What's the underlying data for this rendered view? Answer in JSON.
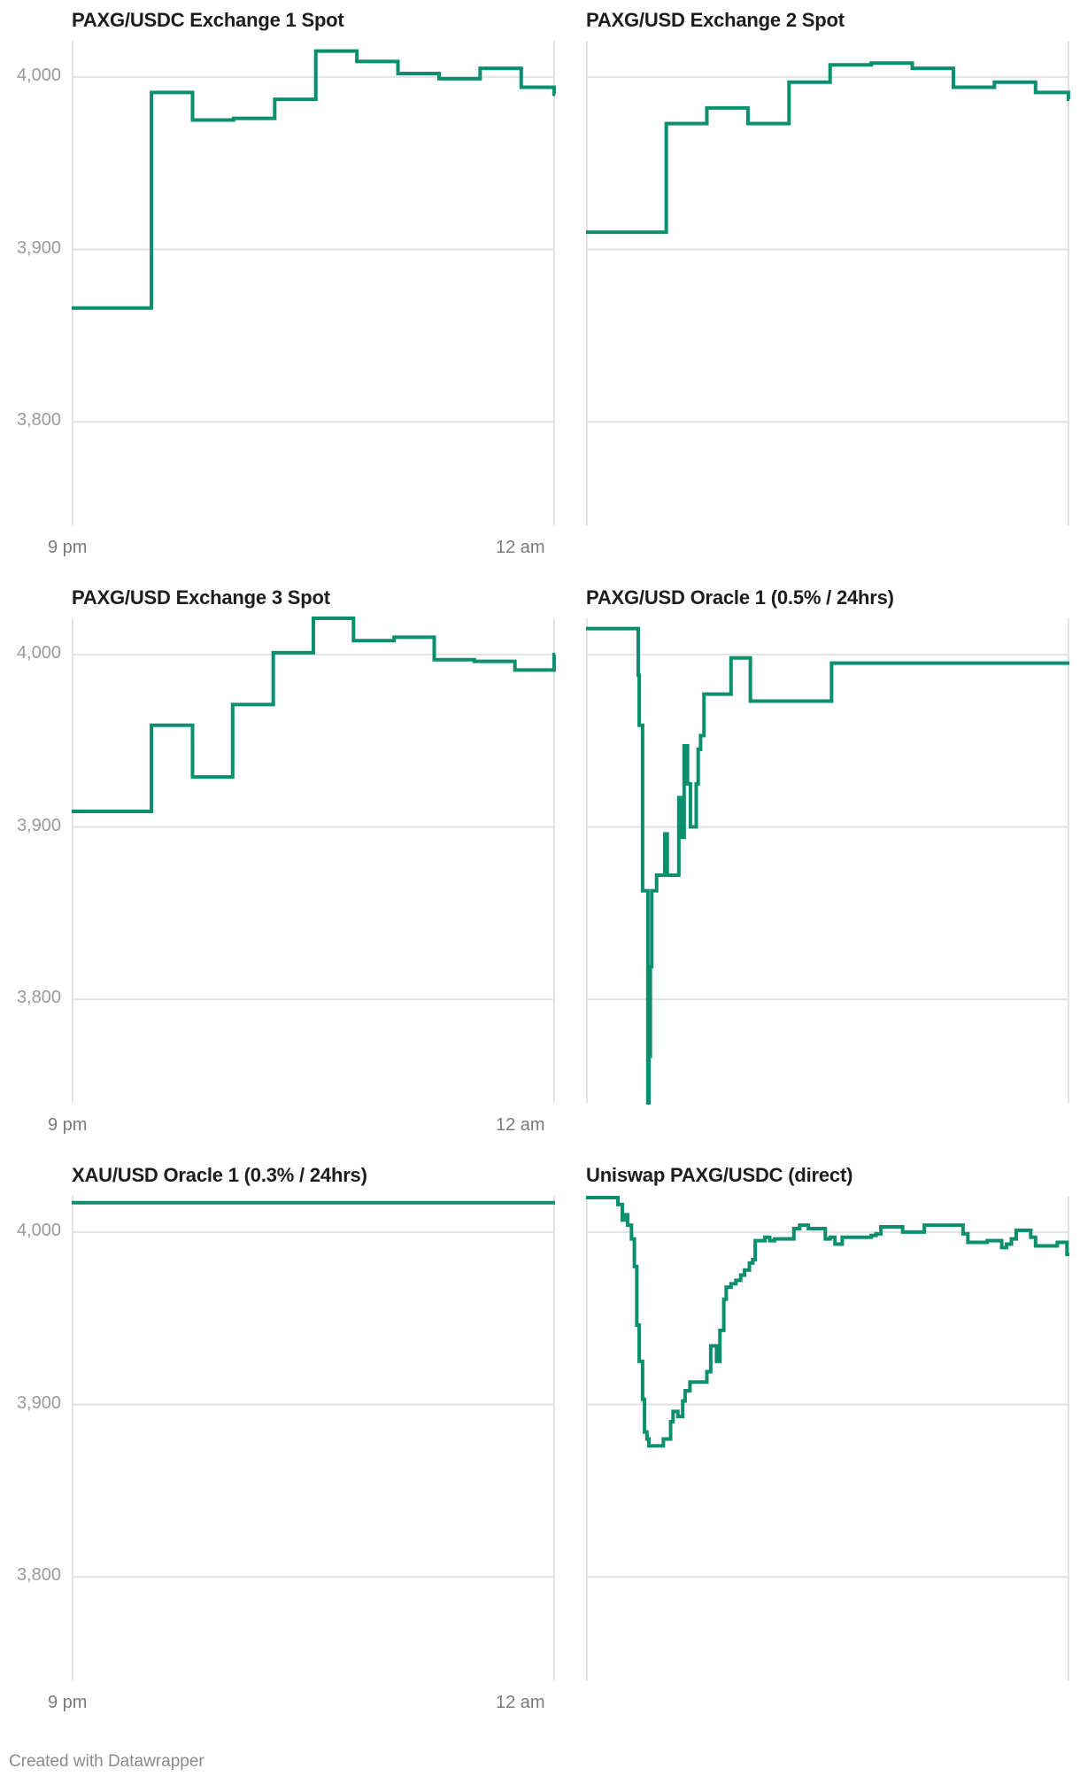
{
  "footer": "Created with Datawrapper",
  "style": {
    "line_color": "#0b8f6e",
    "grid_color": "#e2e2e2",
    "axis_color": "#e2e2e2"
  },
  "axis": {
    "y_ticks": [
      {
        "value": 4000,
        "label": "4,000"
      },
      {
        "value": 3900,
        "label": "3,900"
      },
      {
        "value": 3800,
        "label": "3,800"
      }
    ],
    "x_labels": {
      "start": "9 pm",
      "end": "12 am"
    }
  },
  "chart_data": [
    {
      "type": "line",
      "step": true,
      "title": "PAXG/USDC Exchange 1 Spot",
      "xlabel": "",
      "ylabel": "",
      "ylim": [
        3740,
        4021
      ],
      "x": [
        0,
        0.165,
        0.25,
        0.335,
        0.42,
        0.505,
        0.59,
        0.675,
        0.76,
        0.845,
        0.93,
        0.998,
        1.0
      ],
      "values": [
        3866,
        3991,
        3975,
        3976,
        3987,
        4015,
        4009,
        4002,
        3999,
        4005,
        3994,
        3990,
        3990
      ]
    },
    {
      "type": "line",
      "step": true,
      "title": "PAXG/USD Exchange 2 Spot",
      "xlabel": "",
      "ylabel": "",
      "ylim": [
        3740,
        4021
      ],
      "x": [
        0,
        0.166,
        0.25,
        0.335,
        0.42,
        0.505,
        0.59,
        0.675,
        0.76,
        0.845,
        0.93,
        0.998,
        1.0
      ],
      "values": [
        3910,
        3973,
        3982,
        3973,
        3997,
        4007,
        4008,
        4005,
        3994,
        3997,
        3991,
        3987,
        3987
      ]
    },
    {
      "type": "line",
      "step": true,
      "title": "PAXG/USD Exchange 3 Spot",
      "xlabel": "",
      "ylabel": "",
      "ylim": [
        3740,
        4021
      ],
      "x": [
        0,
        0.165,
        0.25,
        0.333,
        0.417,
        0.5,
        0.583,
        0.667,
        0.75,
        0.833,
        0.917,
        0.998,
        1.0
      ],
      "values": [
        3909,
        3959,
        3929,
        3971,
        4001,
        4021,
        4008,
        4010,
        3997,
        3996,
        3991,
        4000,
        4000
      ]
    },
    {
      "type": "line",
      "step": true,
      "title": "PAXG/USD Oracle 1 (0.5% / 24hrs)",
      "xlabel": "",
      "ylabel": "",
      "ylim": [
        3740,
        4021
      ],
      "x": [
        0,
        0.108,
        0.11,
        0.117,
        0.128,
        0.13,
        0.133,
        0.136,
        0.146,
        0.163,
        0.168,
        0.192,
        0.197,
        0.203,
        0.21,
        0.216,
        0.228,
        0.232,
        0.237,
        0.244,
        0.25,
        0.3,
        0.34,
        0.508,
        1.0
      ],
      "values": [
        4015,
        3988,
        3959,
        3863,
        3740,
        3767,
        3819,
        3863,
        3872,
        3896,
        3872,
        3917,
        3894,
        3947,
        3925,
        3900,
        3925,
        3945,
        3953,
        3977,
        3977,
        3998,
        3973,
        3995,
        3995
      ]
    },
    {
      "type": "line",
      "step": true,
      "title": "XAU/USD Oracle 1 (0.3% / 24hrs)",
      "xlabel": "",
      "ylabel": "",
      "ylim": [
        3740,
        4021
      ],
      "x": [
        0,
        1.0
      ],
      "values": [
        4017,
        4017
      ]
    },
    {
      "type": "line",
      "step": true,
      "title": "Uniswap PAXG/USDC (direct)",
      "xlabel": "",
      "ylabel": "",
      "ylim": [
        3740,
        4021
      ],
      "x": [
        0,
        0.066,
        0.075,
        0.08,
        0.086,
        0.094,
        0.1,
        0.105,
        0.11,
        0.117,
        0.121,
        0.126,
        0.13,
        0.16,
        0.175,
        0.18,
        0.19,
        0.2,
        0.205,
        0.215,
        0.25,
        0.258,
        0.27,
        0.277,
        0.285,
        0.29,
        0.3,
        0.31,
        0.32,
        0.328,
        0.338,
        0.345,
        0.35,
        0.37,
        0.38,
        0.39,
        0.43,
        0.442,
        0.46,
        0.495,
        0.505,
        0.515,
        0.53,
        0.59,
        0.6,
        0.61,
        0.655,
        0.7,
        0.78,
        0.79,
        0.83,
        0.86,
        0.87,
        0.88,
        0.89,
        0.92,
        0.93,
        0.975,
        0.995,
        1.0
      ],
      "values": [
        4020,
        4016,
        4007,
        4010,
        4004,
        3996,
        3980,
        3946,
        3925,
        3903,
        3884,
        3880,
        3876,
        3880,
        3890,
        3896,
        3893,
        3902,
        3908,
        3913,
        3919,
        3934,
        3925,
        3943,
        3961,
        3968,
        3970,
        3972,
        3975,
        3978,
        3982,
        3984,
        3995,
        3997,
        3995,
        3996,
        4002,
        4004,
        4002,
        3996,
        3997,
        3993,
        3997,
        3998,
        3999,
        4003,
        4000,
        4004,
        3999,
        3994,
        3995,
        3991,
        3993,
        3996,
        4001,
        3997,
        3992,
        3994,
        3987,
        3987
      ]
    }
  ]
}
